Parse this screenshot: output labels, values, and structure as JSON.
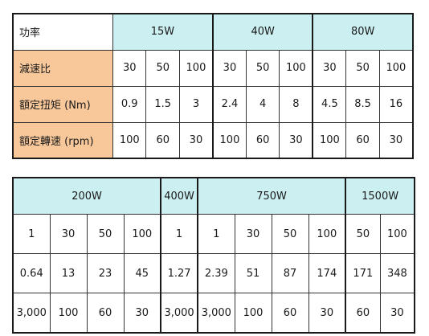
{
  "top_table": {
    "row_labels": {
      "power": "功率",
      "ratio": "減速比",
      "torque": "額定扭矩 (Nm)",
      "speed": "額定轉速 (rpm)"
    },
    "groups": [
      {
        "power": "15W",
        "ratio": [
          "30",
          "50",
          "100"
        ],
        "torque": [
          "0.9",
          "1.5",
          "3"
        ],
        "speed": [
          "100",
          "60",
          "30"
        ]
      },
      {
        "power": "40W",
        "ratio": [
          "30",
          "50",
          "100"
        ],
        "torque": [
          "2.4",
          "4",
          "8"
        ],
        "speed": [
          "100",
          "60",
          "30"
        ]
      },
      {
        "power": "80W",
        "ratio": [
          "30",
          "50",
          "100"
        ],
        "torque": [
          "4.5",
          "8.5",
          "16"
        ],
        "speed": [
          "100",
          "60",
          "30"
        ]
      }
    ]
  },
  "bottom_table": {
    "groups": [
      {
        "power": "200W",
        "ratio": [
          "1",
          "30",
          "50",
          "100"
        ],
        "torque": [
          "0.64",
          "13",
          "23",
          "45"
        ],
        "speed": [
          "3,000",
          "100",
          "60",
          "30"
        ]
      },
      {
        "power": "400W",
        "ratio": [
          "1"
        ],
        "torque": [
          "1.27"
        ],
        "speed": [
          "3,000"
        ]
      },
      {
        "power": "750W",
        "ratio": [
          "1",
          "30",
          "50",
          "100"
        ],
        "torque": [
          "2.39",
          "51",
          "87",
          "174"
        ],
        "speed": [
          "3,000",
          "100",
          "60",
          "30"
        ]
      },
      {
        "power": "1500W",
        "ratio": [
          "50",
          "100"
        ],
        "torque": [
          "171",
          "348"
        ],
        "speed": [
          "60",
          "30"
        ]
      }
    ]
  },
  "colors": {
    "header_background": "#cceff1",
    "label_background": "#f8c89a",
    "border": "#1a1a1a"
  }
}
